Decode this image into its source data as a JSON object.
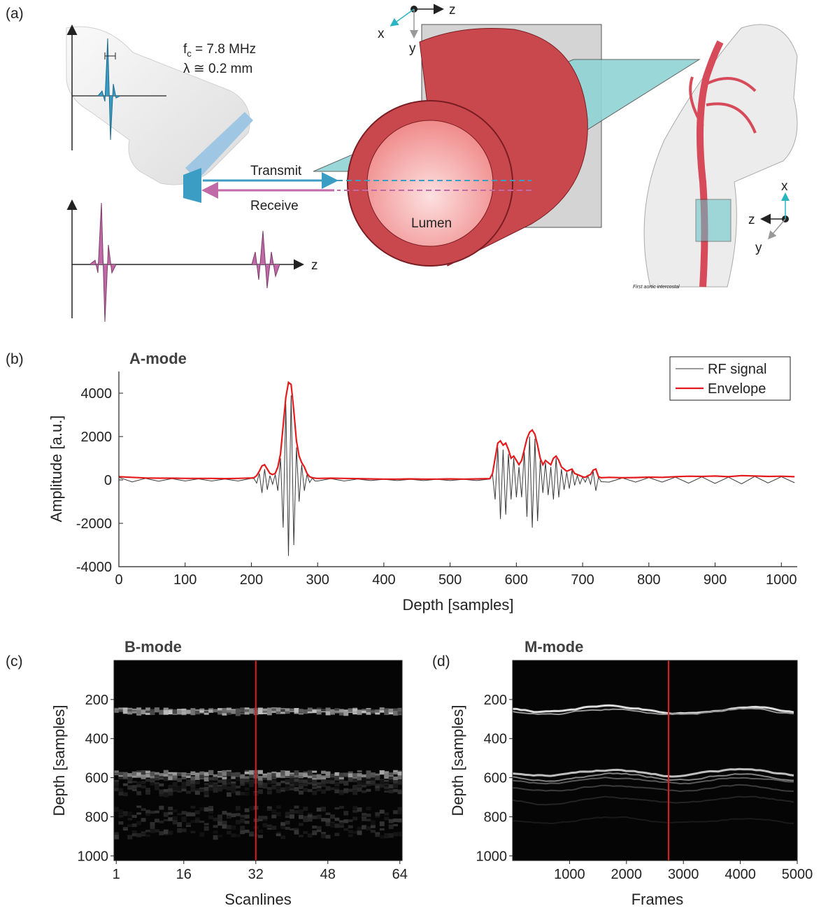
{
  "diagram": {
    "panel": "(a)",
    "fc_symbol": "f",
    "fc_sub": "c",
    "fc_text": " = 7.8 MHz",
    "lambda": "λ ≅ 0.2 mm",
    "transmit": "Transmit",
    "receive": "Receive",
    "lumen": "Lumen",
    "z_axis": "z",
    "top_axes": {
      "x": "x",
      "y": "y",
      "z": "z"
    },
    "right_axes": {
      "x": "x",
      "y": "y",
      "z": "z"
    },
    "anatomy_note": "First aortic intercostal"
  },
  "chart_data": [
    {
      "type": "line",
      "panel": "(b)",
      "title": "A-mode",
      "xlabel": "Depth [samples]",
      "ylabel": "Amplitude [a.u.]",
      "xlim": [
        0,
        1024
      ],
      "ylim": [
        -4000,
        5000
      ],
      "xticks": [
        0,
        100,
        200,
        300,
        400,
        500,
        600,
        700,
        800,
        900,
        1000
      ],
      "yticks": [
        -4000,
        -2000,
        0,
        2000,
        4000
      ],
      "legend": "upper right",
      "x": [
        0,
        20,
        40,
        60,
        80,
        100,
        120,
        140,
        160,
        180,
        200,
        204,
        208,
        212,
        216,
        220,
        224,
        228,
        232,
        236,
        240,
        244,
        248,
        252,
        256,
        260,
        264,
        268,
        272,
        276,
        280,
        284,
        288,
        292,
        296,
        300,
        320,
        340,
        360,
        380,
        400,
        420,
        440,
        460,
        480,
        500,
        520,
        540,
        560,
        564,
        568,
        572,
        576,
        580,
        584,
        588,
        592,
        596,
        600,
        604,
        608,
        612,
        616,
        620,
        624,
        628,
        632,
        636,
        640,
        644,
        648,
        652,
        656,
        660,
        664,
        668,
        672,
        676,
        680,
        684,
        688,
        692,
        696,
        700,
        704,
        708,
        712,
        716,
        720,
        724,
        728,
        740,
        760,
        780,
        800,
        820,
        840,
        860,
        880,
        900,
        920,
        940,
        960,
        980,
        1000,
        1020
      ],
      "series": [
        {
          "name": "RF signal",
          "color": "#3a3a3a",
          "values": [
            120,
            -90,
            70,
            -60,
            60,
            -50,
            50,
            -50,
            40,
            -50,
            70,
            60,
            -150,
            300,
            -600,
            500,
            -450,
            200,
            -200,
            250,
            -500,
            1000,
            -2200,
            3500,
            -3500,
            3900,
            -3000,
            1500,
            -1000,
            700,
            -500,
            250,
            -120,
            80,
            -50,
            -50,
            60,
            -50,
            40,
            -30,
            30,
            -30,
            30,
            -30,
            30,
            -30,
            30,
            -30,
            40,
            250,
            -900,
            1500,
            -1800,
            1400,
            -1600,
            1200,
            -900,
            1000,
            -800,
            600,
            -800,
            1300,
            -1700,
            2000,
            -2200,
            1900,
            -1900,
            900,
            -600,
            800,
            -700,
            600,
            -900,
            1000,
            -800,
            500,
            -450,
            350,
            -400,
            450,
            -250,
            200,
            -180,
            130,
            -100,
            180,
            -200,
            400,
            -500,
            120,
            -80,
            -100,
            90,
            -100,
            110,
            -100,
            130,
            -150,
            140,
            -160,
            130,
            -180,
            160,
            -140,
            150,
            -130
          ]
        },
        {
          "name": "Envelope",
          "color": "#e41a1c",
          "values": [
            150,
            120,
            90,
            80,
            80,
            70,
            70,
            70,
            60,
            70,
            90,
            100,
            200,
            400,
            650,
            700,
            500,
            300,
            250,
            300,
            600,
            1200,
            2500,
            3800,
            4500,
            4400,
            3200,
            1800,
            1100,
            800,
            600,
            300,
            150,
            100,
            80,
            70,
            80,
            70,
            60,
            50,
            40,
            40,
            50,
            40,
            40,
            50,
            40,
            50,
            60,
            300,
            1000,
            1700,
            1800,
            1600,
            1700,
            1400,
            1000,
            1100,
            900,
            700,
            900,
            1400,
            1900,
            2200,
            2300,
            2100,
            1600,
            1000,
            700,
            900,
            800,
            700,
            1000,
            1100,
            900,
            600,
            500,
            400,
            450,
            500,
            300,
            250,
            200,
            150,
            120,
            200,
            250,
            450,
            500,
            150,
            100,
            120,
            100,
            110,
            130,
            120,
            150,
            170,
            160,
            180,
            150,
            200,
            180,
            160,
            170,
            150
          ]
        }
      ]
    },
    {
      "type": "heatmap",
      "panel": "(c)",
      "title": "B-mode",
      "xlabel": "Scanlines",
      "ylabel": "Depth [samples]",
      "xlim": [
        0.5,
        64.5
      ],
      "ylim": [
        0,
        1024
      ],
      "xticks": [
        1,
        16,
        32,
        48,
        64
      ],
      "yticks": [
        200,
        400,
        600,
        800,
        1000
      ],
      "marker_x": 32,
      "marker_color": "#e41a1c"
    },
    {
      "type": "heatmap",
      "panel": "(d)",
      "title": "M-mode",
      "xlabel": "Frames",
      "ylabel": "Depth [samples]",
      "xlim": [
        0,
        5000
      ],
      "ylim": [
        0,
        1024
      ],
      "xticks": [
        1000,
        2000,
        3000,
        4000,
        5000
      ],
      "yticks": [
        200,
        400,
        600,
        800,
        1000
      ],
      "marker_x": 2740,
      "marker_color": "#e41a1c"
    }
  ]
}
